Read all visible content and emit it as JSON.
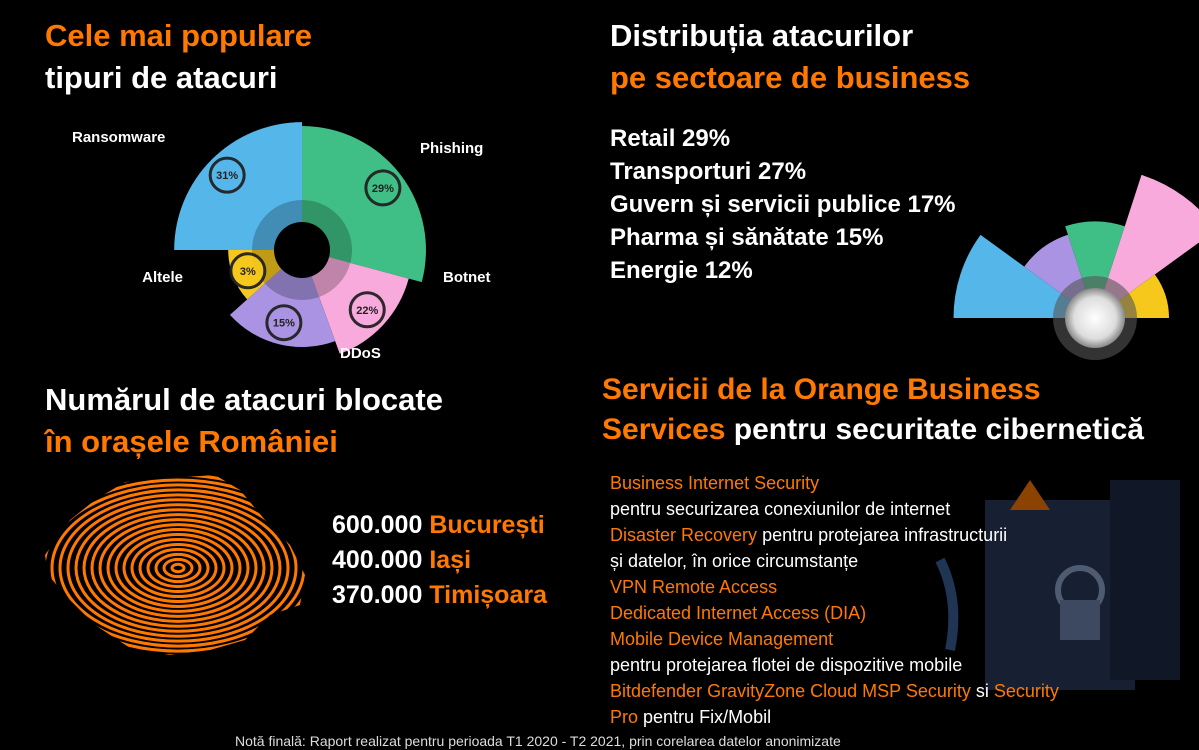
{
  "chart_data": [
    {
      "type": "polar",
      "title": "Cele mai populare",
      "subtitle": "tipuri de atacuri",
      "categories": [
        "Ransomware",
        "Phishing",
        "Botnet",
        "DDoS",
        "Altele"
      ],
      "values": [
        31,
        29,
        22,
        15,
        3
      ],
      "value_labels": [
        "31%",
        "29%",
        "22%",
        "15%",
        "3%"
      ],
      "colors": [
        "#55b6ea",
        "#3fbf85",
        "#f7aadb",
        "#a993e2",
        "#f6c81c"
      ]
    },
    {
      "type": "polar",
      "title": "Distribuția atacurilor",
      "subtitle": "pe sectoare de business",
      "categories": [
        "Retail",
        "Transporturi",
        "Guvern și servicii publice",
        "Pharma și sănătate",
        "Energie"
      ],
      "values": [
        29,
        27,
        17,
        15,
        12
      ],
      "value_labels": [
        "29%",
        "27%",
        "17%",
        "15%",
        "12%"
      ],
      "colors": [
        "#f7aadb",
        "#55b6ea",
        "#3fbf85",
        "#a993e2",
        "#f6c81c"
      ]
    }
  ],
  "cities_section": {
    "title": "Numărul de atacuri blocate",
    "subtitle": "în orașele României",
    "cities": [
      {
        "count": "600.000",
        "name": "București"
      },
      {
        "count": "400.000",
        "name": "Iași"
      },
      {
        "count": "370.000",
        "name": "Timișoara"
      }
    ]
  },
  "services_section": {
    "title_accent": "Servicii de la Orange Business Services",
    "title_rest": "pentru securitate cibernetică",
    "lines": [
      [
        {
          "text": "Business Internet Security",
          "accent": true
        }
      ],
      [
        {
          "text": "pentru securizarea conexiunilor de internet",
          "accent": false
        }
      ],
      [
        {
          "text": "Disaster Recovery",
          "accent": true
        },
        {
          "text": "pentru protejarea infrastructurii",
          "accent": false
        }
      ],
      [
        {
          "text": "și datelor, în orice circumstanțe",
          "accent": false
        }
      ],
      [
        {
          "text": "VPN Remote Access",
          "accent": true
        }
      ],
      [
        {
          "text": "Dedicated Internet Access (DIA)",
          "accent": true
        }
      ],
      [
        {
          "text": "Mobile Device Management",
          "accent": true
        }
      ],
      [
        {
          "text": "pentru protejarea flotei de dispozitive mobile",
          "accent": false
        }
      ],
      [
        {
          "text": "Bitdefender GravityZone Cloud MSP Security",
          "accent": true
        },
        {
          "text": "si",
          "accent": false
        },
        {
          "text": "Security",
          "accent": true
        }
      ],
      [
        {
          "text": "Pro",
          "accent": true
        },
        {
          "text": "pentru Fix/Mobil",
          "accent": false
        }
      ]
    ]
  },
  "note": "Notă finală: Raport realizat pentru perioada T1 2020 - T2 2021, prin corelarea datelor anonimizate"
}
